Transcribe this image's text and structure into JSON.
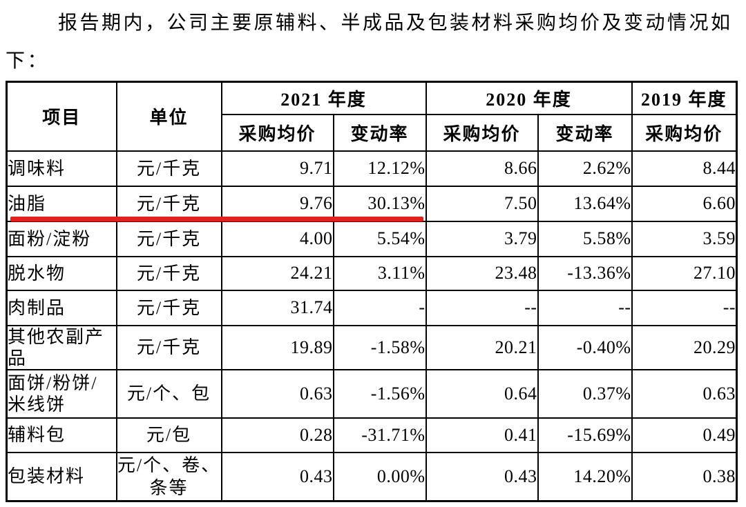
{
  "intro": "报告期内，公司主要原辅料、半成品及包装材料采购均价及变动情况如下：",
  "table": {
    "header": {
      "item": "项目",
      "unit": "单位",
      "year_2021": "2021 年度",
      "year_2020": "2020 年度",
      "year_2019": "2019 年度",
      "avg_price": "采购均价",
      "change_rate": "变动率"
    },
    "rows": [
      {
        "item": "调味料",
        "unit": "元/千克",
        "p2021": "9.71",
        "c2021": "12.12%",
        "p2020": "8.66",
        "c2020": "2.62%",
        "p2019": "8.44"
      },
      {
        "item": "油脂",
        "unit": "元/千克",
        "p2021": "9.76",
        "c2021": "30.13%",
        "p2020": "7.50",
        "c2020": "13.64%",
        "p2019": "6.60"
      },
      {
        "item": "面粉/淀粉",
        "unit": "元/千克",
        "p2021": "4.00",
        "c2021": "5.54%",
        "p2020": "3.79",
        "c2020": "5.58%",
        "p2019": "3.59"
      },
      {
        "item": "脱水物",
        "unit": "元/千克",
        "p2021": "24.21",
        "c2021": "3.11%",
        "p2020": "23.48",
        "c2020": "-13.36%",
        "p2019": "27.10"
      },
      {
        "item": "肉制品",
        "unit": "元/千克",
        "p2021": "31.74",
        "c2021": "-",
        "p2020": "--",
        "c2020": "--",
        "p2019": "--"
      },
      {
        "item": "其他农副产品",
        "unit": "元/千克",
        "p2021": "19.89",
        "c2021": "-1.58%",
        "p2020": "20.21",
        "c2020": "-0.40%",
        "p2019": "20.29"
      },
      {
        "item": "面饼/粉饼/米线饼",
        "unit": "元/个、包",
        "p2021": "0.63",
        "c2021": "-1.56%",
        "p2020": "0.64",
        "c2020": "0.37%",
        "p2019": "0.63"
      },
      {
        "item": "辅料包",
        "unit": "元/包",
        "p2021": "0.28",
        "c2021": "-31.71%",
        "p2020": "0.41",
        "c2020": "-15.69%",
        "p2019": "0.49"
      },
      {
        "item": "包装材料",
        "unit": "元/个、卷、条等",
        "p2021": "0.43",
        "c2021": "0.00%",
        "p2020": "0.43",
        "c2020": "14.20%",
        "p2019": "0.38"
      }
    ]
  },
  "annotation": {
    "highlight_color": "#e32119",
    "highlighted_item": "油脂"
  }
}
